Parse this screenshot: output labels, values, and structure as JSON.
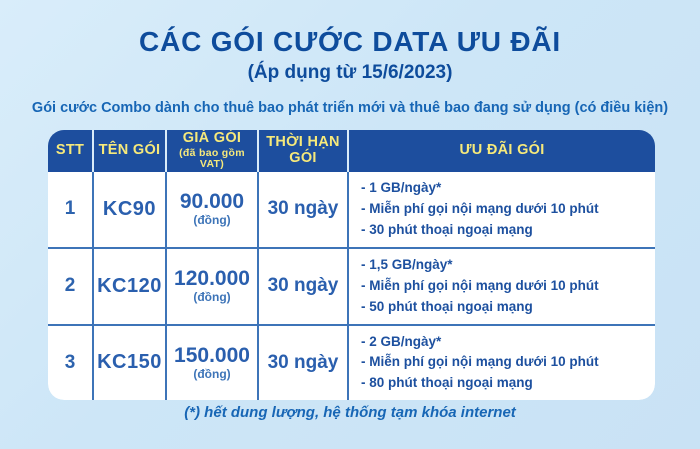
{
  "page": {
    "title": "CÁC GÓI CƯỚC DATA ƯU ĐÃI",
    "subtitle": "(Áp dụng từ 15/6/2023)",
    "description": "Gói cước Combo dành cho thuê bao phát triển mới và thuê bao đang sử dụng (có điều kiện)",
    "footnote": "(*) hết dung lượng, hệ thống tạm khóa internet"
  },
  "colors": {
    "background": "#cde6f7",
    "title_blue": "#0e4c9c",
    "description_blue": "#1766b5",
    "header_background": "#1d4e9e",
    "header_text_yellow": "#f6e97b",
    "body_text_blue": "#2a5fae",
    "divider_blue": "#3d74b8",
    "body_background": "#ffffff"
  },
  "table": {
    "headers": [
      {
        "label": "STT",
        "sub": ""
      },
      {
        "label": "TÊN GÓI",
        "sub": ""
      },
      {
        "label": "GIÁ GÓI",
        "sub": "(đã bao gồm VAT)"
      },
      {
        "label": "THỜI HẠN GÓI",
        "sub": ""
      },
      {
        "label": "ƯU ĐÃI GÓI",
        "sub": ""
      }
    ],
    "rows": [
      {
        "stt": "1",
        "ten_goi": "KC90",
        "gia": "90.000",
        "gia_unit": "(đồng)",
        "thoi_han": "30 ngày",
        "uu_dai": [
          "- 1 GB/ngày*",
          "- Miễn phí gọi nội mạng dưới 10 phút",
          "- 30 phút thoại ngoại mạng"
        ]
      },
      {
        "stt": "2",
        "ten_goi": "KC120",
        "gia": "120.000",
        "gia_unit": "(đồng)",
        "thoi_han": "30 ngày",
        "uu_dai": [
          "- 1,5 GB/ngày*",
          "- Miễn phí gọi nội mạng dưới 10 phút",
          "- 50 phút thoại ngoại mạng"
        ]
      },
      {
        "stt": "3",
        "ten_goi": "KC150",
        "gia": "150.000",
        "gia_unit": "(đồng)",
        "thoi_han": "30 ngày",
        "uu_dai": [
          "- 2 GB/ngày*",
          "- Miễn phí gọi nội mạng dưới 10 phút",
          "- 80 phút thoại ngoại mạng"
        ]
      }
    ]
  }
}
